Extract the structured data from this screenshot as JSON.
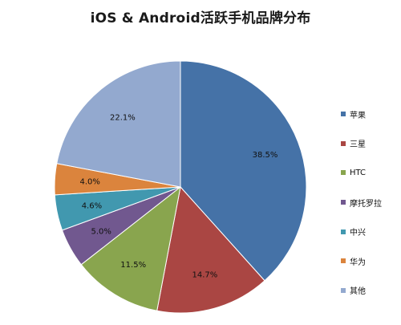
{
  "chart_data": {
    "type": "pie",
    "title": "iOS & Android活跃手机品牌分布",
    "categories": [
      "苹果",
      "三星",
      "HTC",
      "摩托罗拉",
      "中兴",
      "华为",
      "其他"
    ],
    "values": [
      38.5,
      14.7,
      11.5,
      5.0,
      4.6,
      4.0,
      22.1
    ],
    "value_labels": [
      "38.5%",
      "14.7%",
      "11.5%",
      "5.0%",
      "4.6%",
      "4.0%",
      "22.1%"
    ],
    "colors": [
      "#4572a7",
      "#aa4643",
      "#89a54e",
      "#71588f",
      "#4198af",
      "#db843d",
      "#93a9cf"
    ],
    "start_angle_deg": 0,
    "direction": "clockwise",
    "legend_position": "right"
  }
}
